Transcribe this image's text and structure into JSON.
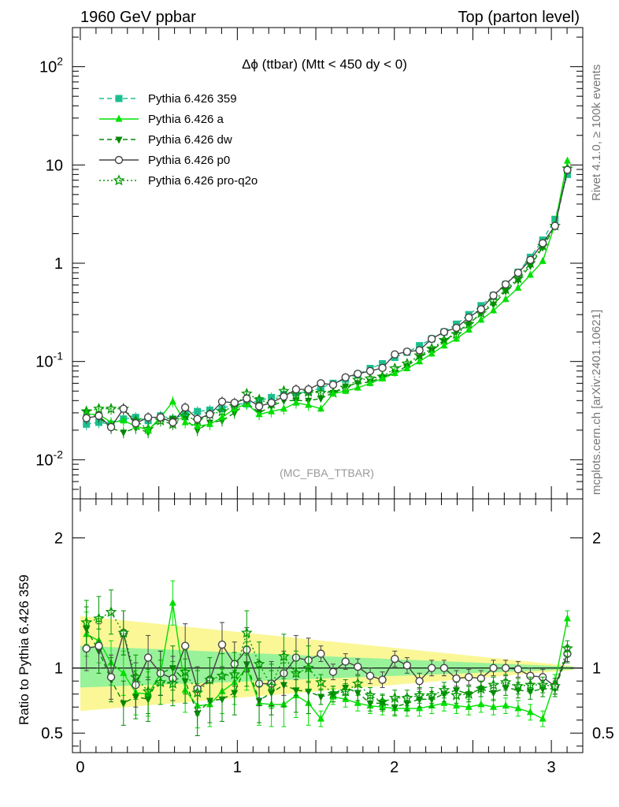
{
  "header": {
    "left_title": "1960 GeV ppbar",
    "right_title": "Top (parton level)"
  },
  "side_labels": {
    "rivet": "Rivet 4.1.0, ≥ 100k events",
    "mcplots": "mcplots.cern.ch [arXiv:2401.10621]"
  },
  "watermark": "(MC_FBA_TTBAR)",
  "chart_data": [
    {
      "type": "line",
      "panel": "main",
      "title": "Δϕ (ttbar) (Mtt < 450 dy < 0)",
      "xlabel": "",
      "ylabel": "",
      "yscale": "log",
      "xlim": [
        -0.05,
        3.2
      ],
      "ylim": [
        0.004,
        250
      ],
      "y_tick_labels": [
        "10^-2",
        "10^-1",
        "1",
        "10",
        "10^2"
      ],
      "x_tick_labels": [
        "0",
        "1",
        "2",
        "3"
      ],
      "x": [
        0.039,
        0.118,
        0.196,
        0.275,
        0.353,
        0.432,
        0.511,
        0.589,
        0.668,
        0.746,
        0.825,
        0.903,
        0.982,
        1.06,
        1.139,
        1.217,
        1.296,
        1.374,
        1.453,
        1.532,
        1.61,
        1.689,
        1.767,
        1.846,
        1.924,
        2.003,
        2.081,
        2.16,
        2.238,
        2.317,
        2.395,
        2.474,
        2.552,
        2.631,
        2.709,
        2.788,
        2.866,
        2.945,
        3.023,
        3.102
      ],
      "series": [
        {
          "name": "Pythia 6.426 359",
          "color": "#1bbf8f",
          "marker": "square",
          "dash": "dashed",
          "values": [
            0.023,
            0.024,
            0.023,
            0.026,
            0.027,
            0.025,
            0.028,
            0.026,
            0.029,
            0.031,
            0.032,
            0.033,
            0.037,
            0.037,
            0.04,
            0.043,
            0.046,
            0.048,
            0.049,
            0.054,
            0.06,
            0.066,
            0.074,
            0.085,
            0.095,
            0.11,
            0.124,
            0.145,
            0.17,
            0.2,
            0.24,
            0.3,
            0.37,
            0.47,
            0.61,
            0.81,
            1.15,
            1.72,
            2.8,
            8.0
          ]
        },
        {
          "name": "Pythia 6.426 a",
          "color": "#00e000",
          "marker": "triangle-up",
          "dash": "solid",
          "values": [
            0.029,
            0.029,
            0.024,
            0.025,
            0.022,
            0.02,
            0.027,
            0.039,
            0.024,
            0.022,
            0.023,
            0.027,
            0.033,
            0.037,
            0.029,
            0.031,
            0.033,
            0.038,
            0.036,
            0.033,
            0.047,
            0.05,
            0.054,
            0.06,
            0.067,
            0.076,
            0.085,
            0.1,
            0.12,
            0.145,
            0.17,
            0.21,
            0.265,
            0.33,
            0.43,
            0.56,
            0.76,
            1.05,
            2.5,
            11.0
          ]
        },
        {
          "name": "Pythia 6.426 dw",
          "color": "#008800",
          "marker": "triangle-down",
          "dash": "dashed",
          "values": [
            0.03,
            0.027,
            0.021,
            0.019,
            0.021,
            0.019,
            0.027,
            0.026,
            0.026,
            0.02,
            0.024,
            0.025,
            0.03,
            0.038,
            0.03,
            0.035,
            0.04,
            0.04,
            0.04,
            0.042,
            0.048,
            0.056,
            0.06,
            0.062,
            0.069,
            0.077,
            0.09,
            0.11,
            0.13,
            0.16,
            0.2,
            0.24,
            0.31,
            0.38,
            0.52,
            0.67,
            0.94,
            1.45,
            2.35,
            8.8
          ]
        },
        {
          "name": "Pythia 6.426 p0",
          "color": "#444444",
          "marker": "circle-open",
          "dash": "solid",
          "values": [
            0.0265,
            0.028,
            0.0215,
            0.033,
            0.0235,
            0.027,
            0.027,
            0.024,
            0.034,
            0.026,
            0.029,
            0.039,
            0.038,
            0.042,
            0.035,
            0.038,
            0.044,
            0.052,
            0.052,
            0.06,
            0.058,
            0.069,
            0.075,
            0.08,
            0.086,
            0.118,
            0.126,
            0.13,
            0.17,
            0.2,
            0.22,
            0.28,
            0.34,
            0.47,
            0.61,
            0.8,
            1.08,
            1.6,
            2.4,
            8.9
          ]
        },
        {
          "name": "Pythia 6.426 pro-q2o",
          "color": "#009900",
          "marker": "star-open",
          "dash": "dotted",
          "values": [
            0.031,
            0.033,
            0.033,
            0.033,
            0.025,
            0.0205,
            0.025,
            0.023,
            0.028,
            0.025,
            0.029,
            0.031,
            0.035,
            0.047,
            0.041,
            0.037,
            0.05,
            0.046,
            0.049,
            0.048,
            0.048,
            0.054,
            0.065,
            0.067,
            0.07,
            0.085,
            0.095,
            0.115,
            0.135,
            0.165,
            0.19,
            0.24,
            0.31,
            0.41,
            0.54,
            0.7,
            1.0,
            1.5,
            2.4,
            9.2
          ]
        }
      ]
    },
    {
      "type": "line",
      "panel": "ratio",
      "ylabel": "Ratio to Pythia 6.426 359",
      "xlim": [
        -0.05,
        3.2
      ],
      "ylim": [
        0.35,
        2.3
      ],
      "y_tick_labels": [
        "0.5",
        "1",
        "2"
      ],
      "x_tick_labels": [
        "0",
        "1",
        "2",
        "3"
      ],
      "reference_line": 1,
      "band_green": {
        "x": [
          0.0,
          3.141
        ],
        "low": [
          0.85,
          0.99
        ],
        "high": [
          1.17,
          1.01
        ]
      },
      "band_yellow": {
        "x": [
          0.0,
          3.141
        ],
        "low": [
          0.67,
          0.985
        ],
        "high": [
          1.4,
          1.015
        ]
      },
      "series": [
        {
          "name": "Pythia 6.426 a",
          "values": [
            1.26,
            1.21,
            1.04,
            0.96,
            0.81,
            0.8,
            0.96,
            1.5,
            0.83,
            0.71,
            0.72,
            0.82,
            0.89,
            1.0,
            0.73,
            0.72,
            0.72,
            0.79,
            0.73,
            0.61,
            0.78,
            0.76,
            0.73,
            0.71,
            0.7,
            0.69,
            0.69,
            0.69,
            0.71,
            0.73,
            0.71,
            0.7,
            0.72,
            0.7,
            0.71,
            0.69,
            0.66,
            0.61,
            0.89,
            1.38
          ]
        },
        {
          "name": "Pythia 6.426 dw",
          "values": [
            1.3,
            1.13,
            0.91,
            0.73,
            0.78,
            0.76,
            0.96,
            1.0,
            0.9,
            0.65,
            0.75,
            0.76,
            0.81,
            1.03,
            0.75,
            0.81,
            0.87,
            0.83,
            0.82,
            0.78,
            0.8,
            0.85,
            0.81,
            0.73,
            0.73,
            0.7,
            0.73,
            0.76,
            0.76,
            0.8,
            0.83,
            0.8,
            0.84,
            0.81,
            0.85,
            0.83,
            0.82,
            0.84,
            0.84,
            1.1
          ]
        },
        {
          "name": "Pythia 6.426 p0",
          "values": [
            1.15,
            1.17,
            0.93,
            1.27,
            0.87,
            1.08,
            0.96,
            0.92,
            1.17,
            0.84,
            0.91,
            1.18,
            1.03,
            1.14,
            0.88,
            0.88,
            0.96,
            1.08,
            1.06,
            1.11,
            0.97,
            1.05,
            1.01,
            0.94,
            0.91,
            1.07,
            1.02,
            0.9,
            1.0,
            1.0,
            0.92,
            0.93,
            0.92,
            1.0,
            1.0,
            0.99,
            0.94,
            0.93,
            0.86,
            1.11
          ]
        },
        {
          "name": "Pythia 6.426 pro-q2o",
          "values": [
            1.35,
            1.38,
            1.43,
            1.27,
            0.93,
            0.82,
            0.89,
            0.88,
            0.97,
            0.81,
            0.91,
            0.94,
            0.95,
            1.27,
            1.03,
            0.86,
            1.09,
            0.96,
            1.0,
            0.89,
            0.8,
            0.82,
            0.88,
            0.79,
            0.74,
            0.77,
            0.77,
            0.79,
            0.79,
            0.83,
            0.79,
            0.8,
            0.84,
            0.87,
            0.89,
            0.86,
            0.87,
            0.87,
            0.86,
            1.15
          ]
        }
      ]
    }
  ]
}
